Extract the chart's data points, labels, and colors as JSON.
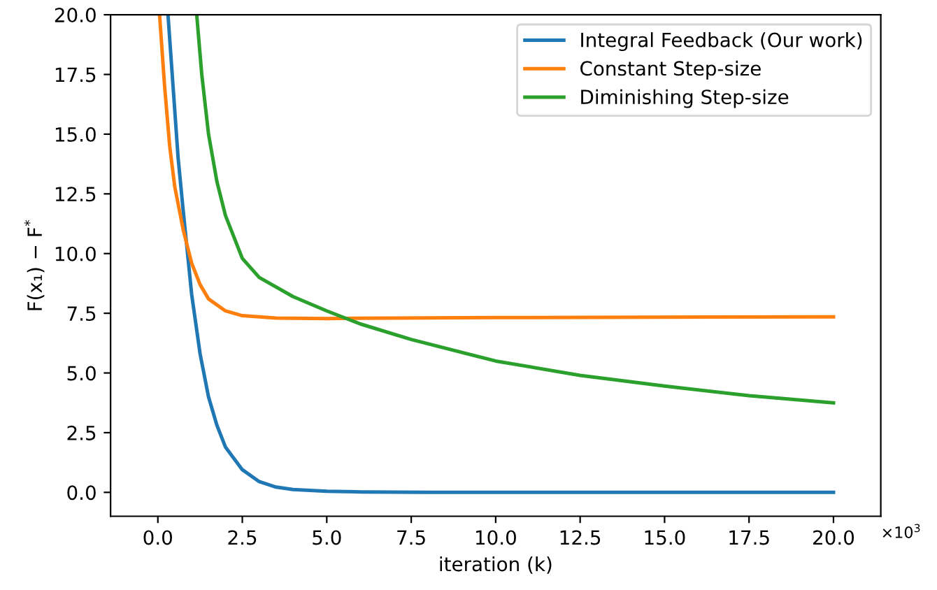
{
  "chart_data": {
    "type": "line",
    "xlabel": "iteration (k)",
    "ylabel": "F(x₁) − F$^{*}$",
    "annotations": [
      "×10$^{3}$"
    ],
    "xlim": [
      -1.4,
      21.4
    ],
    "ylim": [
      -1,
      20
    ],
    "xticks": [
      {
        "value": 0,
        "label": "0.0"
      },
      {
        "value": 2.5,
        "label": "2.5"
      },
      {
        "value": 5,
        "label": "5.0"
      },
      {
        "value": 7.5,
        "label": "7.5"
      },
      {
        "value": 10,
        "label": "10.0"
      },
      {
        "value": 12.5,
        "label": "12.5"
      },
      {
        "value": 15,
        "label": "15.0"
      },
      {
        "value": 17.5,
        "label": "17.5"
      },
      {
        "value": 20,
        "label": "20.0"
      }
    ],
    "yticks": [
      {
        "value": 0,
        "label": "0.0"
      },
      {
        "value": 2.5,
        "label": "2.5"
      },
      {
        "value": 5,
        "label": "5.0"
      },
      {
        "value": 7.5,
        "label": "7.5"
      },
      {
        "value": 10,
        "label": "10.0"
      },
      {
        "value": 12.5,
        "label": "12.5"
      },
      {
        "value": 15,
        "label": "15.0"
      },
      {
        "value": 17.5,
        "label": "17.5"
      },
      {
        "value": 20,
        "label": "20.0"
      }
    ],
    "grid": false,
    "legend": "top right",
    "series": [
      {
        "name": "Integral Feedback (Our work)",
        "color": "#1f77b4",
        "x": [
          0.3,
          0.45,
          0.6,
          0.75,
          1.0,
          1.25,
          1.5,
          1.75,
          2.0,
          2.5,
          3.0,
          3.5,
          4,
          5,
          6,
          8,
          20
        ],
        "values": [
          20,
          17,
          14,
          11.8,
          8.3,
          5.8,
          4.0,
          2.8,
          1.9,
          0.95,
          0.45,
          0.22,
          0.12,
          0.05,
          0.02,
          0,
          0
        ]
      },
      {
        "name": "Constant Step-size",
        "color": "#ff7f0e",
        "x": [
          0.05,
          0.2,
          0.35,
          0.5,
          0.75,
          1.0,
          1.25,
          1.5,
          2.0,
          2.5,
          3.5,
          5,
          7,
          10,
          20
        ],
        "values": [
          20,
          17,
          14.5,
          12.8,
          11,
          9.6,
          8.7,
          8.1,
          7.6,
          7.4,
          7.3,
          7.28,
          7.3,
          7.32,
          7.35
        ]
      },
      {
        "name": "Diminishing Step-size",
        "color": "#2ca02c",
        "x": [
          1.15,
          1.3,
          1.5,
          1.75,
          2,
          2.5,
          3,
          4,
          5,
          6,
          7.5,
          10,
          12.5,
          15,
          17.5,
          20
        ],
        "values": [
          20,
          17.5,
          15,
          13,
          11.6,
          9.8,
          9.0,
          8.2,
          7.6,
          7.05,
          6.4,
          5.5,
          4.9,
          4.45,
          4.05,
          3.75
        ]
      }
    ]
  }
}
